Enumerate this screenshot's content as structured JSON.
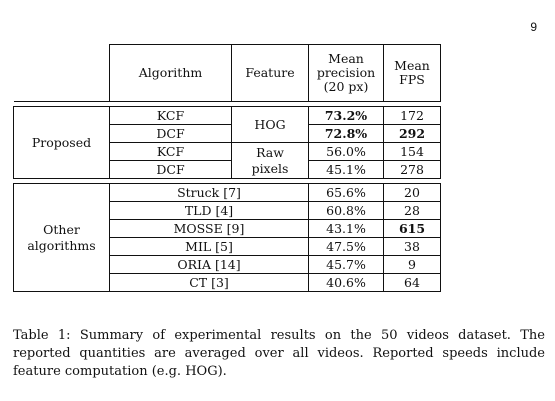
{
  "page_number": "9",
  "table": {
    "headers": {
      "algorithm": "Algorithm",
      "feature": "Feature",
      "precision_l1": "Mean",
      "precision_l2": "precision",
      "precision_l3": "(20 px)",
      "fps_l1": "Mean",
      "fps_l2": "FPS"
    },
    "proposed": {
      "label": "Proposed",
      "rows": [
        {
          "algorithm": "KCF",
          "precision": "73.2%",
          "fps": "172"
        },
        {
          "algorithm": "DCF",
          "precision": "72.8%",
          "fps": "292"
        },
        {
          "algorithm": "KCF",
          "precision": "56.0%",
          "fps": "154"
        },
        {
          "algorithm": "DCF",
          "precision": "45.1%",
          "fps": "278"
        }
      ],
      "feature_hog": "HOG",
      "feature_raw_l1": "Raw",
      "feature_raw_l2": "pixels"
    },
    "other": {
      "label_l1": "Other",
      "label_l2": "algorithms",
      "rows": [
        {
          "algorithm": "Struck [7]",
          "precision": "65.6%",
          "fps": "20"
        },
        {
          "algorithm": "TLD [4]",
          "precision": "60.8%",
          "fps": "28"
        },
        {
          "algorithm": "MOSSE [9]",
          "precision": "43.1%",
          "fps": "615"
        },
        {
          "algorithm": "MIL [5]",
          "precision": "47.5%",
          "fps": "38"
        },
        {
          "algorithm": "ORIA [14]",
          "precision": "45.7%",
          "fps": "9"
        },
        {
          "algorithm": "CT [3]",
          "precision": "40.6%",
          "fps": "64"
        }
      ]
    }
  },
  "caption": "Table 1: Summary of experimental results on the 50 videos dataset. The reported quantities are averaged over all videos. Reported speeds include feature computation (e.g. HOG)."
}
